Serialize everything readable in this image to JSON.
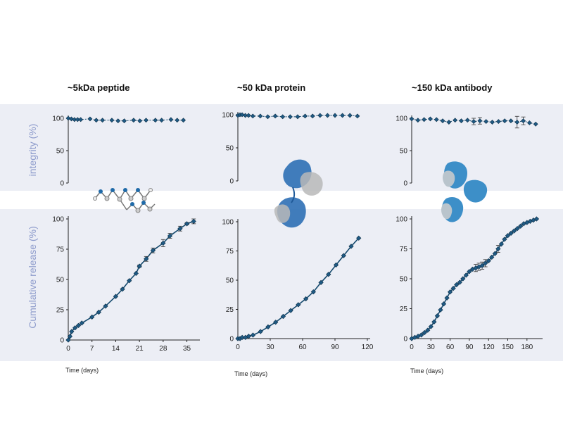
{
  "colors": {
    "line": "#154a6e",
    "marker": "#1f5a84",
    "band": "#eceef5",
    "ylabel": "#8e9ccc"
  },
  "row_labels": {
    "integrity": "integrity (%)",
    "release": "Cumulative release (%)"
  },
  "panels": [
    {
      "title": "~5kDa peptide",
      "xlabel": "Time (days)",
      "molecule_icon": "peptide-molecule-icon"
    },
    {
      "title": "~50 kDa protein",
      "xlabel": "Time (days)",
      "molecule_icon": "protein-molecule-icon"
    },
    {
      "title": "~150 kDa antibody",
      "xlabel": "Time (days)",
      "molecule_icon": "antibody-molecule-icon"
    }
  ],
  "chart_data": [
    {
      "type": "line",
      "panel": 0,
      "kind": "integrity",
      "ylabel": "integrity (%)",
      "ylim": [
        0,
        100
      ],
      "yticks": [
        0,
        50,
        100
      ],
      "xlim": [
        0,
        38
      ],
      "x": [
        0,
        1,
        2,
        3,
        4,
        7,
        9,
        11,
        14,
        16,
        18,
        21,
        23,
        25,
        28,
        30,
        33,
        35,
        37
      ],
      "y": [
        100,
        99,
        98,
        98,
        98,
        99,
        97,
        97,
        97,
        96,
        96,
        97,
        96,
        97,
        97,
        97,
        98,
        97,
        97
      ]
    },
    {
      "type": "line",
      "panel": 1,
      "kind": "integrity",
      "ylabel": "integrity (%)",
      "ylim": [
        0,
        100
      ],
      "yticks": [
        0,
        50,
        100
      ],
      "xlim": [
        0,
        120
      ],
      "x": [
        0,
        2,
        4,
        7,
        10,
        14,
        21,
        28,
        35,
        42,
        49,
        56,
        63,
        70,
        77,
        84,
        91,
        98,
        105,
        112
      ],
      "y": [
        99,
        100,
        100,
        99,
        99,
        98,
        98,
        97,
        98,
        97,
        97,
        97,
        98,
        98,
        99,
        99,
        99,
        99,
        99,
        98
      ]
    },
    {
      "type": "line",
      "panel": 2,
      "kind": "integrity",
      "ylabel": "integrity (%)",
      "ylim": [
        0,
        100
      ],
      "yticks": [
        0,
        50,
        100
      ],
      "xlim": [
        0,
        210
      ],
      "x": [
        0,
        10,
        20,
        30,
        40,
        50,
        60,
        70,
        80,
        90,
        100,
        110,
        120,
        130,
        140,
        150,
        160,
        170,
        180,
        190,
        200
      ],
      "y": [
        99,
        97,
        98,
        99,
        98,
        96,
        94,
        97,
        96,
        97,
        95,
        96,
        95,
        94,
        95,
        96,
        96,
        94,
        96,
        93,
        91
      ],
      "error": [
        0,
        0,
        0,
        0,
        0,
        0,
        0,
        0,
        0,
        0,
        5,
        5,
        0,
        0,
        0,
        0,
        0,
        9,
        6,
        0,
        0
      ]
    },
    {
      "type": "line",
      "panel": 0,
      "kind": "release",
      "ylabel": "Cumulative release (%)",
      "ylim": [
        0,
        100
      ],
      "yticks": [
        0,
        25,
        50,
        75,
        100
      ],
      "xlim": [
        0,
        38
      ],
      "xticks": [
        0,
        7,
        14,
        21,
        28,
        35
      ],
      "x": [
        0,
        0.5,
        1,
        2,
        3,
        4,
        7,
        9,
        11,
        14,
        16,
        18,
        20,
        21,
        23,
        25,
        28,
        30,
        33,
        35,
        37
      ],
      "y": [
        0,
        3,
        7,
        10,
        12,
        14,
        19,
        23,
        28,
        36,
        42,
        49,
        55,
        61,
        67,
        74,
        80,
        86,
        92,
        96,
        98
      ],
      "error": [
        0,
        0,
        0,
        0,
        0,
        0,
        0,
        0,
        0,
        0,
        0,
        0,
        0,
        1,
        2,
        2,
        3,
        2,
        2,
        1,
        2
      ]
    },
    {
      "type": "line",
      "panel": 1,
      "kind": "release",
      "ylabel": "Cumulative release (%)",
      "ylim": [
        0,
        100
      ],
      "yticks": [
        0,
        25,
        50,
        75,
        100
      ],
      "xlim": [
        0,
        120
      ],
      "xticks": [
        0,
        30,
        60,
        90,
        120
      ],
      "x": [
        0,
        2,
        4,
        7,
        10,
        14,
        21,
        28,
        35,
        42,
        49,
        56,
        63,
        70,
        77,
        84,
        91,
        98,
        105,
        112
      ],
      "y": [
        0,
        0,
        1,
        1,
        2,
        3,
        6,
        10,
        14,
        19,
        24,
        29,
        34,
        40,
        48,
        55,
        63,
        71,
        79,
        86
      ]
    },
    {
      "type": "line",
      "panel": 2,
      "kind": "release",
      "ylabel": "Cumulative release (%)",
      "ylim": [
        0,
        100
      ],
      "yticks": [
        0,
        25,
        50,
        75,
        100
      ],
      "xlim": [
        0,
        200
      ],
      "xticks": [
        0,
        30,
        60,
        90,
        120,
        150,
        180
      ],
      "x": [
        0,
        5,
        10,
        15,
        20,
        25,
        30,
        35,
        40,
        45,
        50,
        55,
        60,
        65,
        70,
        75,
        80,
        85,
        90,
        95,
        100,
        105,
        110,
        115,
        120,
        125,
        130,
        135,
        140,
        145,
        150,
        155,
        160,
        165,
        170,
        175,
        180,
        185,
        190,
        195
      ],
      "y": [
        0,
        1,
        2,
        3,
        5,
        7,
        10,
        14,
        19,
        24,
        29,
        34,
        39,
        42,
        45,
        47,
        50,
        53,
        56,
        58,
        59,
        60,
        61,
        63,
        65,
        68,
        71,
        75,
        79,
        83,
        86,
        88,
        90,
        92,
        94,
        96,
        97,
        98,
        99,
        100
      ],
      "error": [
        0,
        0,
        0,
        0,
        0,
        0,
        0,
        0,
        0,
        0,
        0,
        0,
        0,
        0,
        0,
        0,
        0,
        0,
        0,
        0,
        3,
        3,
        3,
        3,
        0,
        0,
        0,
        3,
        0,
        0,
        0,
        0,
        0,
        0,
        0,
        0,
        0,
        0,
        0,
        0
      ]
    }
  ]
}
